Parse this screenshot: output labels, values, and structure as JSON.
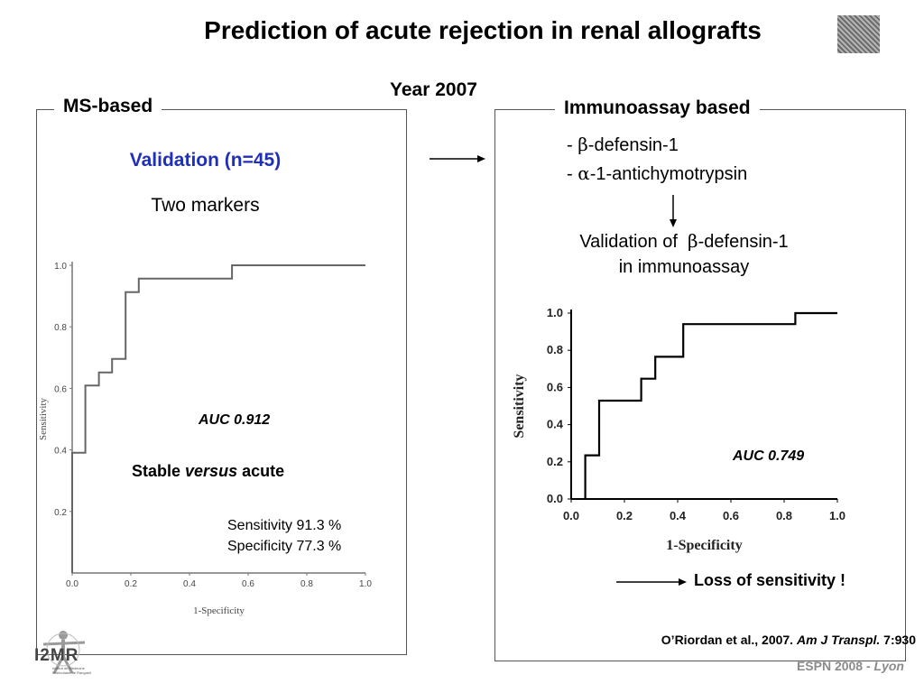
{
  "slide": {
    "title": "Prediction of acute rejection in renal allografts",
    "year": "Year 2007",
    "footer": {
      "main": "ESPN 2008 - ",
      "city": "Lyon"
    },
    "reference": {
      "prefix": "O’Riordan et al., 2007. ",
      "journal": "Am J Transpl.",
      "suffix": " 7:930"
    },
    "logo": {
      "text": "I2MR",
      "subtitle1": "Institut de Médecine",
      "subtitle2": "Moléculaire de Rangueil"
    }
  },
  "left_panel": {
    "legend": "MS-based",
    "validation": "Validation (n=45)",
    "markers": "Two markers",
    "auc": "AUC 0.912",
    "stable_prefix": "Stable ",
    "stable_versus": "versus",
    "stable_suffix": " acute",
    "sensitivity": "Sensitivity 91.3 %",
    "specificity": "Specificity 77.3 %"
  },
  "right_panel": {
    "legend": "Immunoassay based",
    "item1_prefix": "- ",
    "item1_greek": "β",
    "item1_suffix": "-defensin-1",
    "item2_prefix": "- ",
    "item2_greek": "α",
    "item2_suffix": "-1-antichymotrypsin",
    "validation_line1_prefix": "Validation of  ",
    "validation_line1_greek": "β",
    "validation_line1_suffix": "-defensin-1",
    "validation_line2": "in immunoassay",
    "auc": "AUC 0.749",
    "loss": "Loss of sensitivity !"
  },
  "colors": {
    "accent_blue": "#1f2fb8",
    "roc_left": "#666666",
    "roc_right": "#000000"
  },
  "chart_data": [
    {
      "type": "line",
      "xlabel": "1-Specificity",
      "ylabel": "Sensitivity",
      "xlim": [
        0,
        1
      ],
      "ylim": [
        0,
        1
      ],
      "x_ticks": [
        "0.0",
        "0.2",
        "0.4",
        "0.6",
        "0.8",
        "1.0"
      ],
      "y_ticks": [
        "1.0",
        "0.8",
        "0.6",
        "0.4",
        "0.2"
      ],
      "series": [
        {
          "x": [
            0,
            0,
            0.045,
            0.045,
            0.091,
            0.091,
            0.136,
            0.136,
            0.182,
            0.182,
            0.227,
            0.227,
            0.545,
            0.545,
            1.0
          ],
          "y": [
            0,
            0.391,
            0.391,
            0.609,
            0.609,
            0.652,
            0.652,
            0.696,
            0.696,
            0.913,
            0.913,
            0.957,
            0.957,
            1.0,
            1.0
          ]
        }
      ]
    },
    {
      "type": "line",
      "xlabel": "1-Specificity",
      "ylabel": "Sensitivity",
      "xlim": [
        0,
        1
      ],
      "ylim": [
        0,
        1
      ],
      "x_ticks": [
        "0.0",
        "0.2",
        "0.4",
        "0.6",
        "0.8",
        "1.0"
      ],
      "y_ticks": [
        "1.0",
        "0.8",
        "0.6",
        "0.4",
        "0.2",
        "0.0"
      ],
      "series": [
        {
          "x": [
            0.053,
            0.053,
            0.105,
            0.105,
            0.263,
            0.263,
            0.316,
            0.316,
            0.421,
            0.421,
            0.842,
            0.842,
            1.0
          ],
          "y": [
            0,
            0.235,
            0.235,
            0.529,
            0.529,
            0.647,
            0.647,
            0.765,
            0.765,
            0.941,
            0.941,
            1.0,
            1.0
          ]
        }
      ]
    }
  ]
}
